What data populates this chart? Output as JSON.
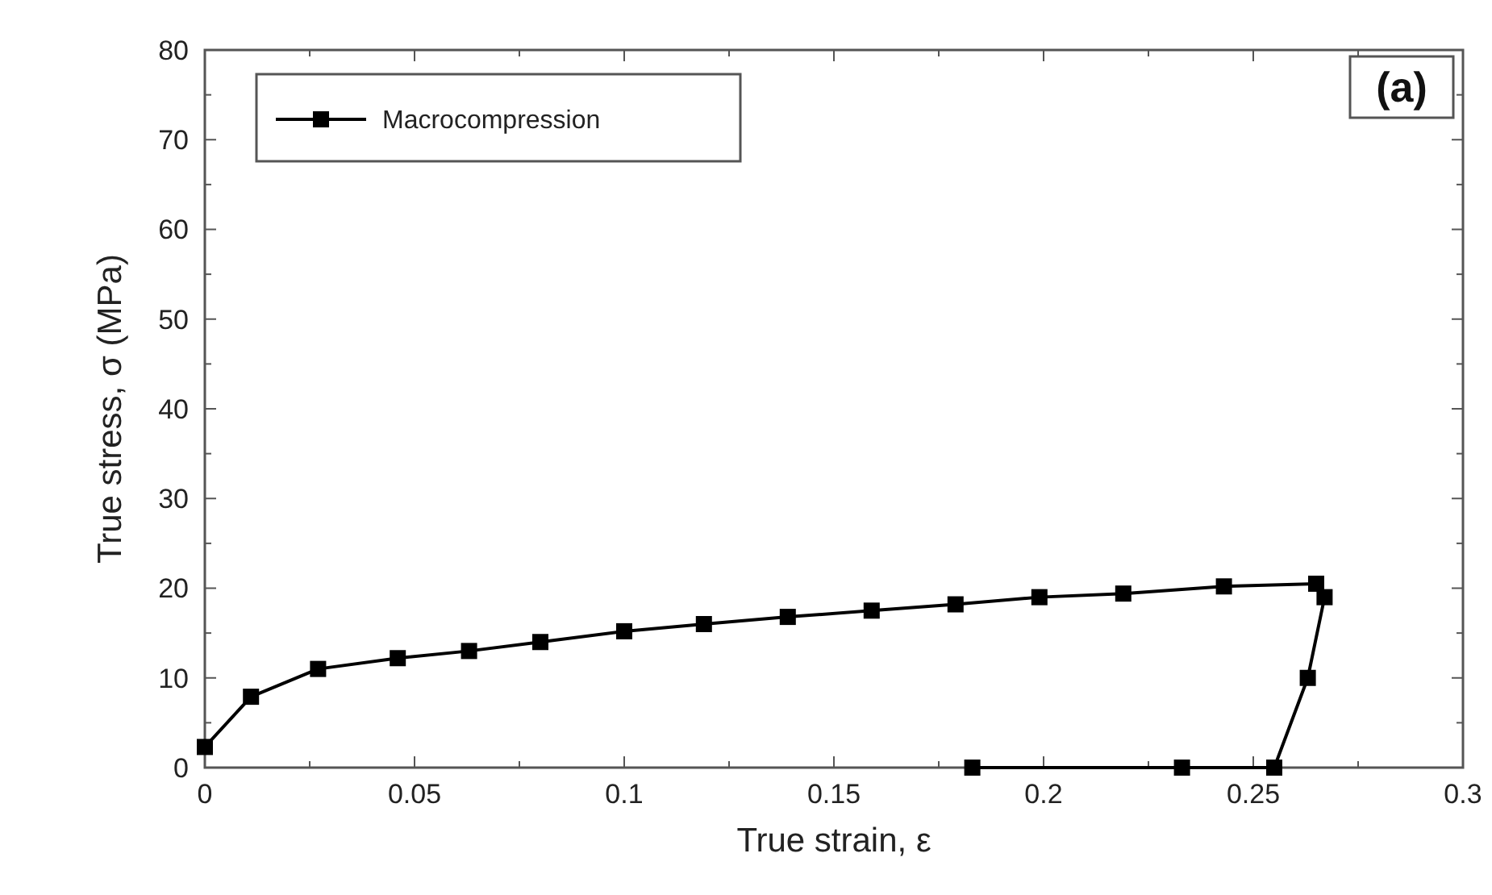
{
  "chart_data": {
    "type": "line",
    "xlabel": "True strain, ε",
    "ylabel": "True stress, σ (MPa)",
    "annotations": [
      "(a)"
    ],
    "x": [
      0,
      0.011,
      0.027,
      0.046,
      0.063,
      0.08,
      0.1,
      0.119,
      0.139,
      0.159,
      0.179,
      0.199,
      0.219,
      0.243,
      0.265,
      0.267,
      0.263,
      0.255,
      0.233,
      0.183
    ],
    "series": [
      {
        "name": "Macrocompression",
        "color": "#000000",
        "values": [
          2.3,
          7.9,
          11,
          12.2,
          13,
          14,
          15.2,
          16,
          16.8,
          17.5,
          18.2,
          19,
          19.4,
          20.2,
          20.5,
          19,
          10,
          0,
          0,
          0
        ]
      }
    ],
    "xlim": [
      0,
      0.3
    ],
    "xticks": [
      0,
      0.05,
      0.1,
      0.15,
      0.2,
      0.25,
      0.3
    ],
    "ylim": [
      0,
      80
    ],
    "yticks": [
      0,
      10,
      20,
      30,
      40,
      50,
      60,
      70,
      80
    ],
    "legend": "top left",
    "marker": "square",
    "line_style": "solid",
    "grid": false
  }
}
